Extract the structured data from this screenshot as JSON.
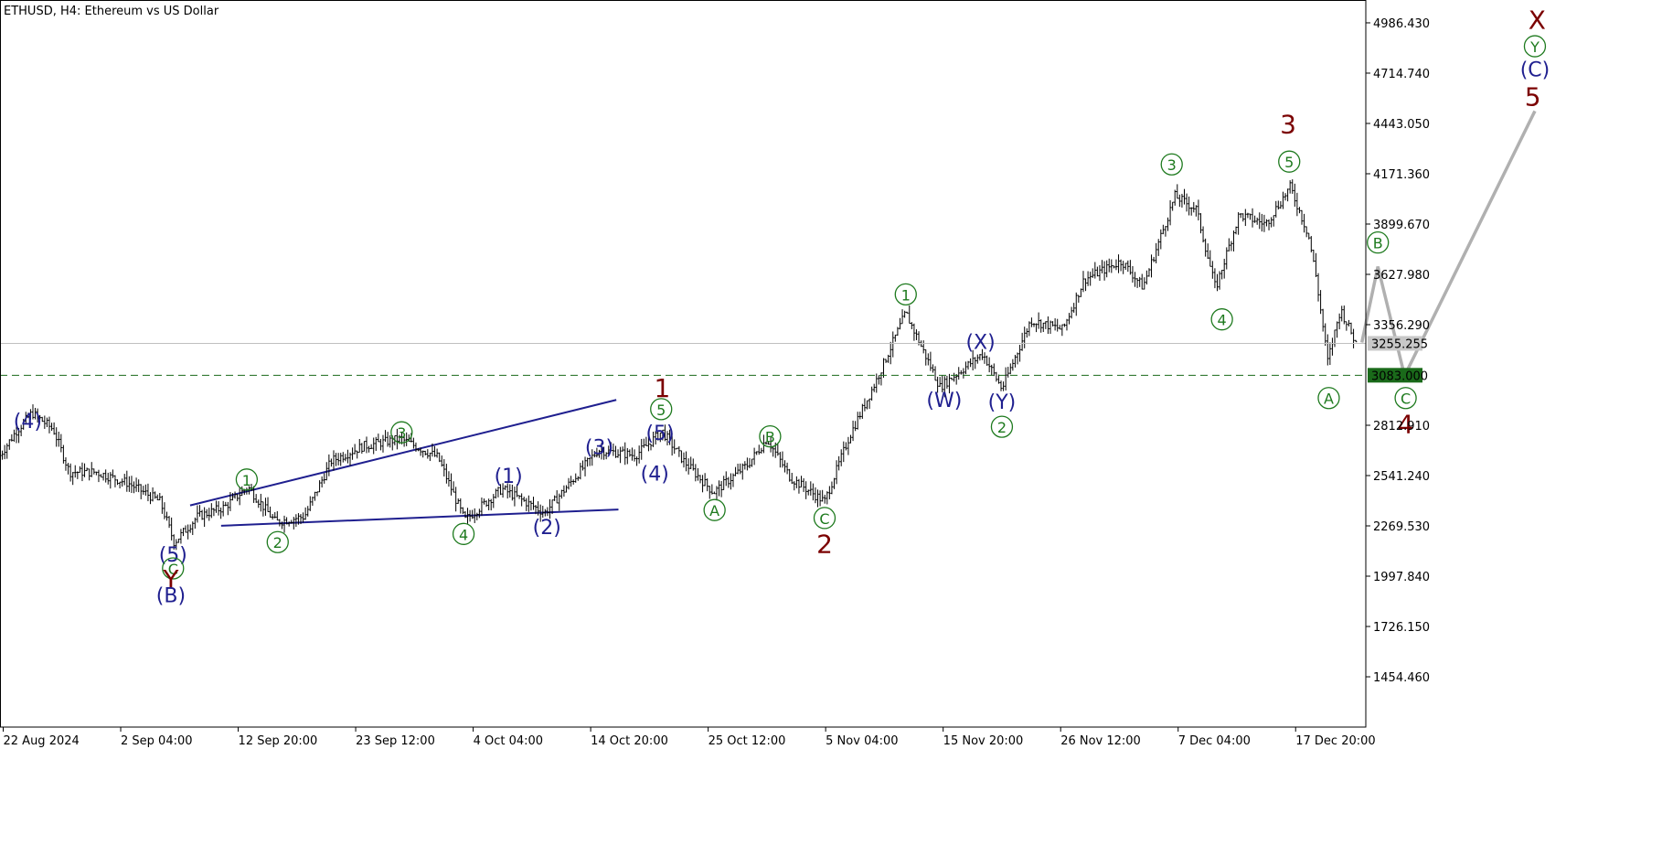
{
  "chart_data": {
    "type": "candlestick",
    "title": "ETHUSD, H4:  Ethereum vs US Dollar",
    "ylim": [
      1250,
      5100
    ],
    "y_ticks": [
      "4986.430",
      "4714.740",
      "4443.050",
      "4171.360",
      "3899.670",
      "3627.980",
      "3356.290",
      "2812.910",
      "2541.240",
      "2269.530",
      "1997.840",
      "1726.150",
      "1454.460"
    ],
    "x_ticks": [
      "22 Aug 2024",
      "2 Sep 04:00",
      "12 Sep 20:00",
      "23 Sep 12:00",
      "4 Oct 04:00",
      "14 Oct 20:00",
      "25 Oct 12:00",
      "5 Nov 04:00",
      "15 Nov 20:00",
      "26 Nov 12:00",
      "7 Dec 04:00",
      "17 Dec 20:00"
    ],
    "price_path": [
      [
        0,
        2650
      ],
      [
        15,
        2780
      ],
      [
        30,
        2880
      ],
      [
        50,
        2790
      ],
      [
        65,
        2560
      ],
      [
        90,
        2560
      ],
      [
        120,
        2500
      ],
      [
        150,
        2400
      ],
      [
        163,
        2180
      ],
      [
        185,
        2320
      ],
      [
        210,
        2370
      ],
      [
        232,
        2480
      ],
      [
        258,
        2290
      ],
      [
        285,
        2320
      ],
      [
        310,
        2620
      ],
      [
        340,
        2700
      ],
      [
        375,
        2740
      ],
      [
        410,
        2640
      ],
      [
        435,
        2300
      ],
      [
        470,
        2470
      ],
      [
        510,
        2340
      ],
      [
        560,
        2680
      ],
      [
        595,
        2650
      ],
      [
        620,
        2780
      ],
      [
        640,
        2620
      ],
      [
        668,
        2450
      ],
      [
        700,
        2600
      ],
      [
        718,
        2740
      ],
      [
        740,
        2530
      ],
      [
        772,
        2400
      ],
      [
        795,
        2750
      ],
      [
        820,
        3050
      ],
      [
        848,
        3420
      ],
      [
        880,
        3020
      ],
      [
        920,
        3200
      ],
      [
        938,
        3010
      ],
      [
        965,
        3380
      ],
      [
        995,
        3330
      ],
      [
        1015,
        3600
      ],
      [
        1050,
        3700
      ],
      [
        1070,
        3560
      ],
      [
        1100,
        4050
      ],
      [
        1120,
        3980
      ],
      [
        1138,
        3550
      ],
      [
        1160,
        3950
      ],
      [
        1185,
        3900
      ],
      [
        1208,
        4100
      ],
      [
        1225,
        3840
      ],
      [
        1232,
        3620
      ],
      [
        1243,
        3160
      ],
      [
        1255,
        3440
      ],
      [
        1270,
        3250
      ]
    ],
    "current_price": "3255.255",
    "support_level": "3083.000",
    "forecast_path": [
      [
        1275,
        3260
      ],
      [
        1290,
        3670
      ],
      [
        1315,
        3080
      ],
      [
        1437,
        4510
      ]
    ],
    "trendlines": [
      {
        "from": [
          178,
          2380
        ],
        "to": [
          577,
          2950
        ]
      },
      {
        "from": [
          207,
          2270
        ],
        "to": [
          579,
          2358
        ]
      }
    ],
    "wave_labels": [
      {
        "text": "(4)",
        "x": 26,
        "y": 2830,
        "color": "navy"
      },
      {
        "text": "(5)",
        "x": 162,
        "y": 2110,
        "color": "navy"
      },
      {
        "text": "C",
        "x": 162,
        "y": 2040,
        "color": "green",
        "circle": true
      },
      {
        "text": "Y",
        "x": 160,
        "y": 1980,
        "color": "maroon"
      },
      {
        "text": "(B)",
        "x": 160,
        "y": 1890,
        "color": "navy"
      },
      {
        "text": "1",
        "x": 231,
        "y": 2520,
        "color": "green",
        "circle": true
      },
      {
        "text": "2",
        "x": 260,
        "y": 2182,
        "color": "green",
        "circle": true
      },
      {
        "text": "3",
        "x": 376,
        "y": 2775,
        "color": "green",
        "circle": true
      },
      {
        "text": "4",
        "x": 434,
        "y": 2226,
        "color": "green",
        "circle": true
      },
      {
        "text": "(1)",
        "x": 476,
        "y": 2535,
        "color": "navy"
      },
      {
        "text": "(2)",
        "x": 512,
        "y": 2256,
        "color": "navy"
      },
      {
        "text": "(3)",
        "x": 561,
        "y": 2690,
        "color": "navy"
      },
      {
        "text": "(4)",
        "x": 613,
        "y": 2545,
        "color": "navy"
      },
      {
        "text": "(5)",
        "x": 618,
        "y": 2765,
        "color": "navy"
      },
      {
        "text": "5",
        "x": 619,
        "y": 2900,
        "color": "green",
        "circle": true
      },
      {
        "text": "1",
        "x": 620,
        "y": 3012,
        "color": "maroon"
      },
      {
        "text": "A",
        "x": 669,
        "y": 2355,
        "color": "green",
        "circle": true
      },
      {
        "text": "B",
        "x": 721,
        "y": 2753,
        "color": "green",
        "circle": true
      },
      {
        "text": "C",
        "x": 772,
        "y": 2312,
        "color": "green",
        "circle": true
      },
      {
        "text": "2",
        "x": 772,
        "y": 2170,
        "color": "maroon"
      },
      {
        "text": "1",
        "x": 848,
        "y": 3520,
        "color": "green",
        "circle": true
      },
      {
        "text": "(X)",
        "x": 918,
        "y": 3258,
        "color": "navy"
      },
      {
        "text": "(W)",
        "x": 884,
        "y": 2944,
        "color": "navy"
      },
      {
        "text": "(Y)",
        "x": 938,
        "y": 2935,
        "color": "navy"
      },
      {
        "text": "2",
        "x": 938,
        "y": 2805,
        "color": "green",
        "circle": true
      },
      {
        "text": "3",
        "x": 1097,
        "y": 4222,
        "color": "green",
        "circle": true
      },
      {
        "text": "4",
        "x": 1144,
        "y": 3385,
        "color": "green",
        "circle": true
      },
      {
        "text": "3",
        "x": 1206,
        "y": 4437,
        "color": "maroon"
      },
      {
        "text": "5",
        "x": 1207,
        "y": 4237,
        "color": "green",
        "circle": true
      },
      {
        "text": "A",
        "x": 1244,
        "y": 2960,
        "color": "green",
        "circle": true
      },
      {
        "text": "B",
        "x": 1290,
        "y": 3800,
        "color": "green",
        "circle": true
      },
      {
        "text": "C",
        "x": 1316,
        "y": 2960,
        "color": "green",
        "circle": true
      },
      {
        "text": "4",
        "x": 1316,
        "y": 2818,
        "color": "maroon"
      },
      {
        "text": "X",
        "x": 1439,
        "y": 5000,
        "color": "maroon"
      },
      {
        "text": "Y",
        "x": 1437,
        "y": 4860,
        "color": "green",
        "circle": true
      },
      {
        "text": "(C)",
        "x": 1437,
        "y": 4730,
        "color": "navy"
      },
      {
        "text": "5",
        "x": 1435,
        "y": 4585,
        "color": "maroon"
      }
    ]
  },
  "colors": {
    "navy": "#1f1f8f",
    "green": "#1e7a1e",
    "maroon": "#7b0000",
    "forecast": "#b0b0b0",
    "support": "#1a6a1a",
    "current": "#c0c0c0",
    "bars": "#000000"
  }
}
